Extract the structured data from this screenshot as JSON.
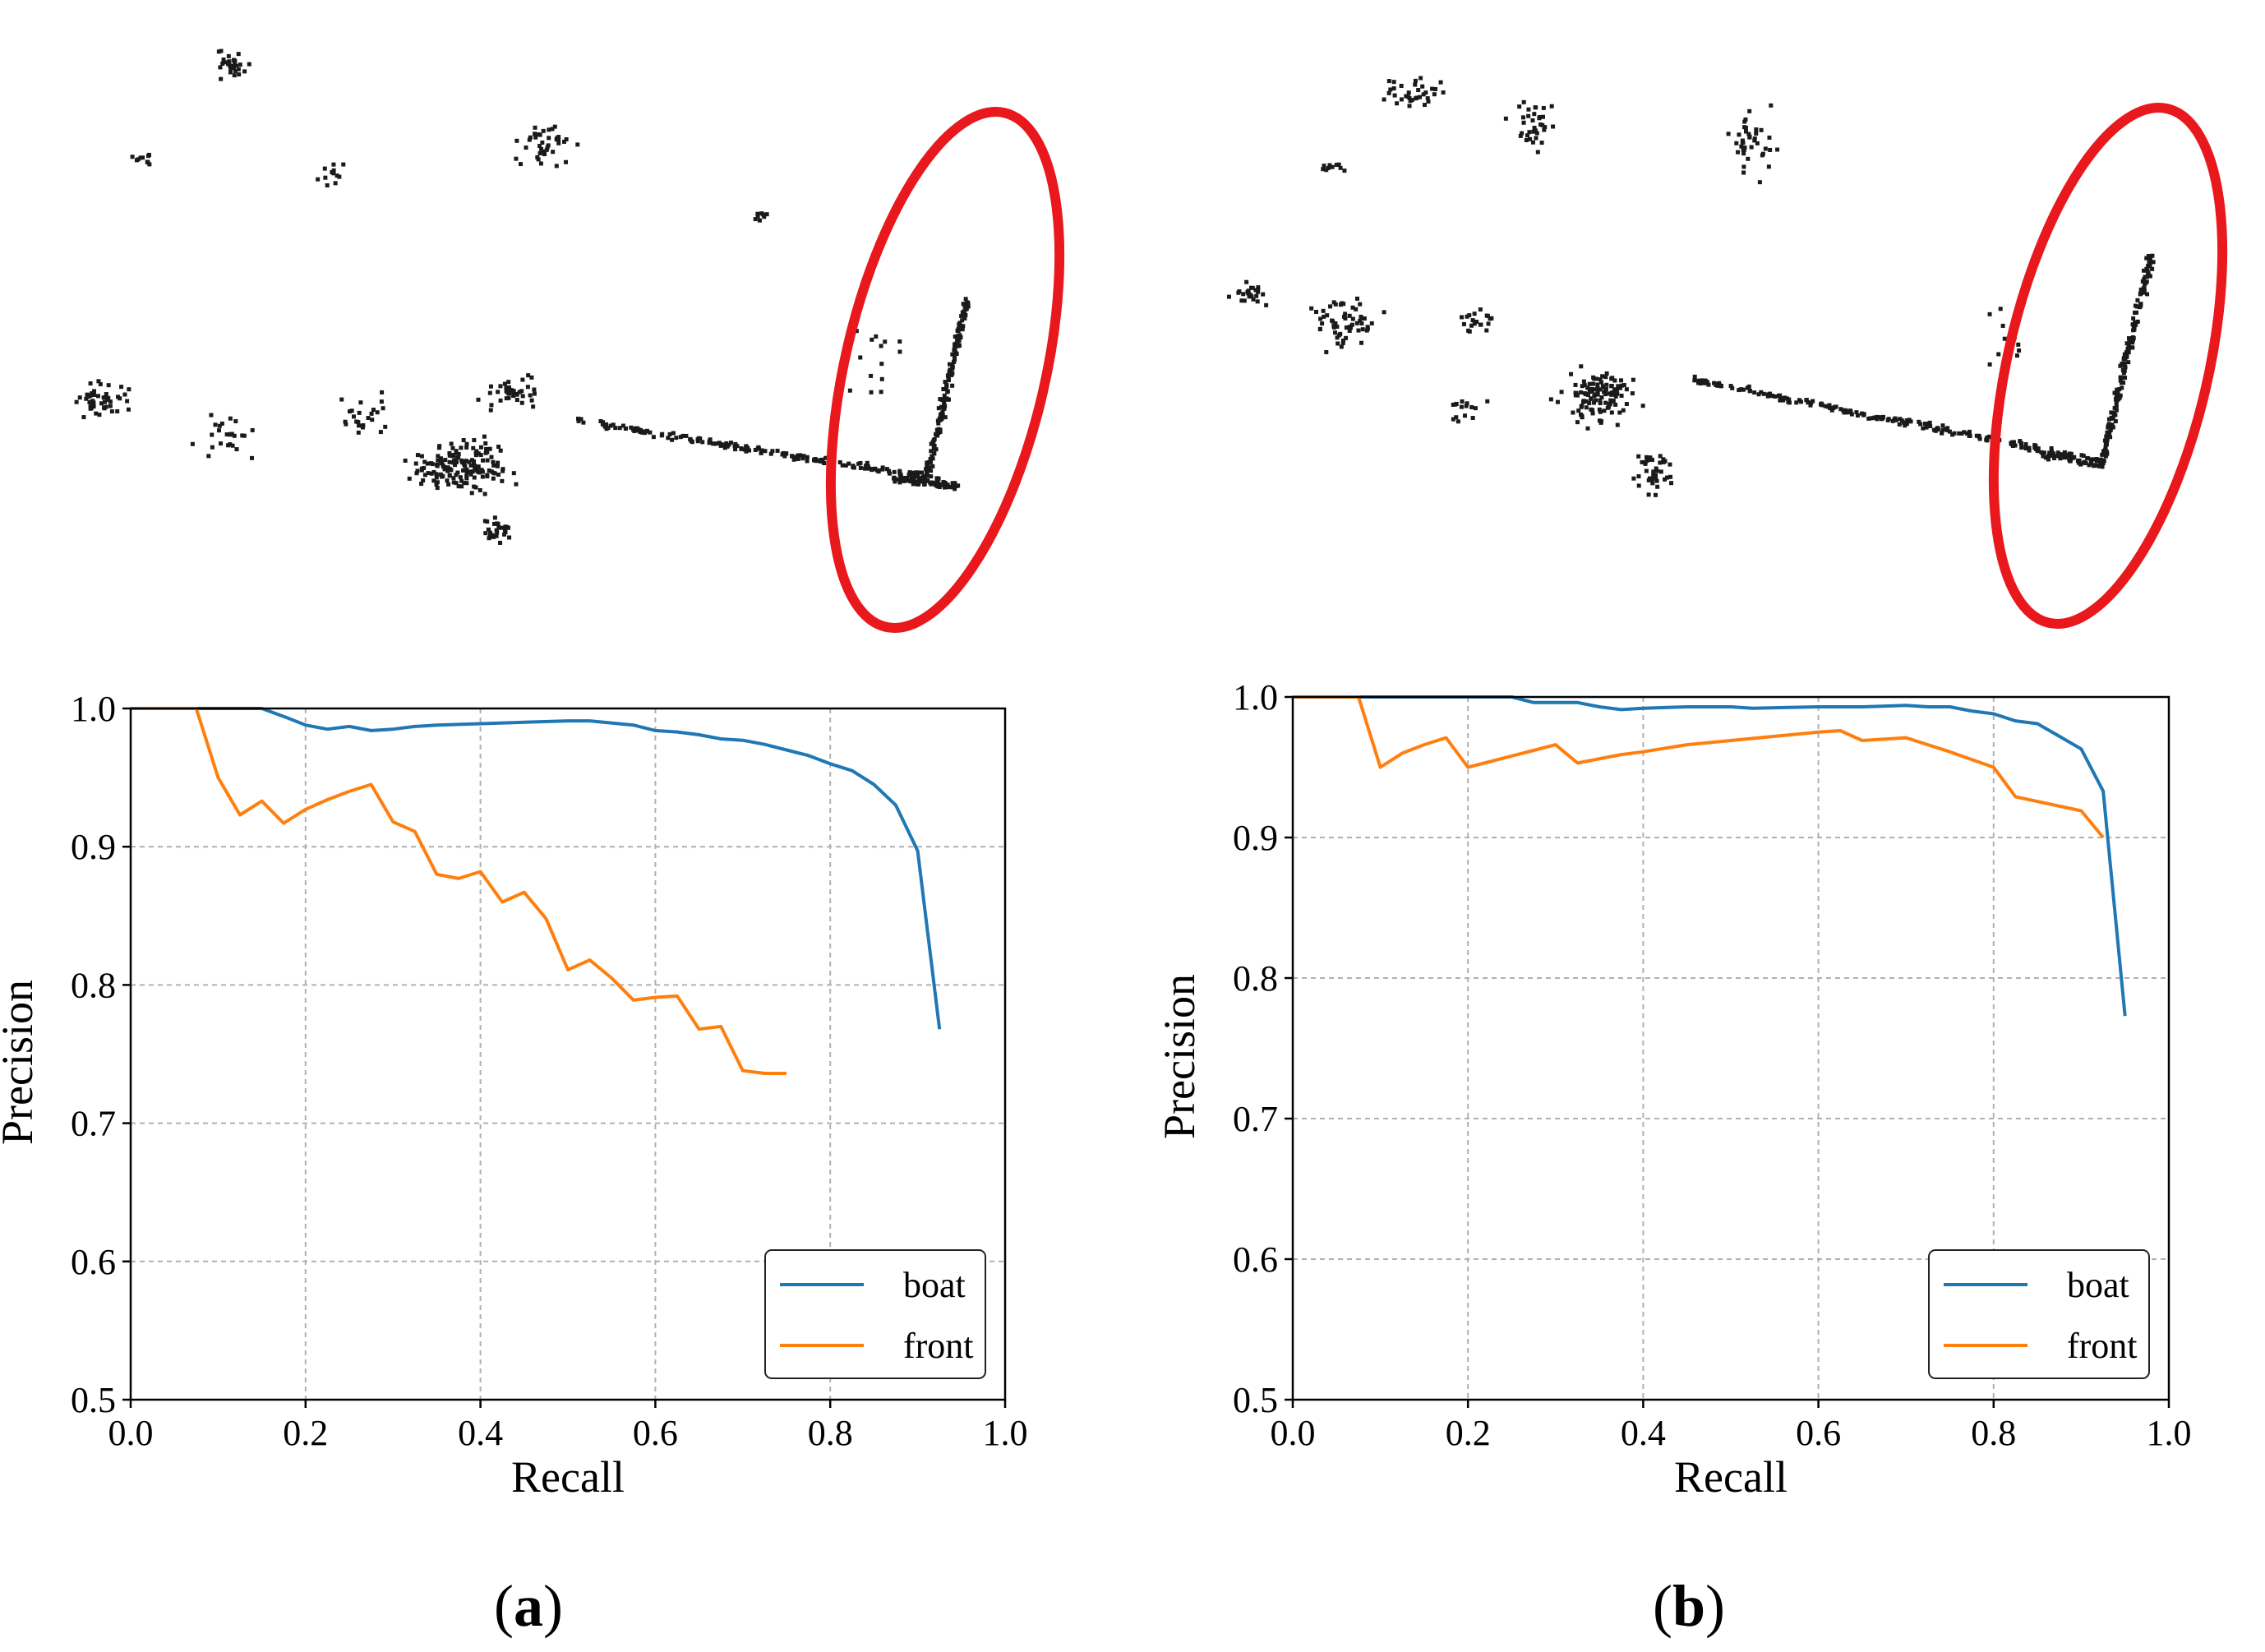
{
  "figure": {
    "panels": [
      {
        "label_prefix": "(",
        "label_letter": "a",
        "label_suffix": ")"
      },
      {
        "label_prefix": "(",
        "label_letter": "b",
        "label_suffix": ")"
      }
    ],
    "highlight_color": "#e8181c",
    "point_color": "#1a1a1a"
  },
  "chart_data": [
    {
      "type": "line",
      "xlabel": "Recall",
      "ylabel": "Precision",
      "xlim": [
        0.0,
        1.0
      ],
      "ylim": [
        0.5,
        1.0
      ],
      "xticks": [
        "0.0",
        "0.2",
        "0.4",
        "0.6",
        "0.8",
        "1.0"
      ],
      "yticks": [
        "0.5",
        "0.6",
        "0.7",
        "0.8",
        "0.9",
        "1.0"
      ],
      "grid": true,
      "legend_position": "lower-right",
      "series": [
        {
          "name": "boat",
          "color": "#1f77b4",
          "x": [
            0.0,
            0.15,
            0.18,
            0.2,
            0.225,
            0.25,
            0.275,
            0.3,
            0.325,
            0.35,
            0.4,
            0.45,
            0.5,
            0.525,
            0.575,
            0.6,
            0.625,
            0.65,
            0.675,
            0.7,
            0.725,
            0.75,
            0.775,
            0.8,
            0.825,
            0.85,
            0.875,
            0.9,
            0.925
          ],
          "y": [
            1.0,
            1.0,
            0.993,
            0.988,
            0.985,
            0.987,
            0.984,
            0.985,
            0.987,
            0.988,
            0.989,
            0.99,
            0.991,
            0.991,
            0.988,
            0.984,
            0.983,
            0.981,
            0.978,
            0.977,
            0.974,
            0.97,
            0.966,
            0.96,
            0.955,
            0.945,
            0.93,
            0.897,
            0.768
          ]
        },
        {
          "name": "front",
          "color": "#ff7f0e",
          "x": [
            0.0,
            0.075,
            0.1,
            0.125,
            0.15,
            0.175,
            0.2,
            0.225,
            0.25,
            0.275,
            0.3,
            0.325,
            0.35,
            0.375,
            0.4,
            0.425,
            0.45,
            0.475,
            0.5,
            0.525,
            0.55,
            0.575,
            0.6,
            0.625,
            0.65,
            0.675,
            0.7,
            0.725,
            0.75
          ],
          "y": [
            1.0,
            1.0,
            0.95,
            0.923,
            0.933,
            0.917,
            0.927,
            0.934,
            0.94,
            0.945,
            0.918,
            0.911,
            0.88,
            0.877,
            0.882,
            0.86,
            0.867,
            0.848,
            0.811,
            0.818,
            0.805,
            0.789,
            0.791,
            0.792,
            0.768,
            0.77,
            0.738,
            0.736,
            0.736
          ]
        }
      ]
    },
    {
      "type": "line",
      "xlabel": "Recall",
      "ylabel": "Precision",
      "xlim": [
        0.0,
        1.0
      ],
      "ylim": [
        0.5,
        1.0
      ],
      "xticks": [
        "0.0",
        "0.2",
        "0.4",
        "0.6",
        "0.8",
        "1.0"
      ],
      "yticks": [
        "0.5",
        "0.6",
        "0.7",
        "0.8",
        "0.9",
        "1.0"
      ],
      "grid": true,
      "legend_position": "lower-right",
      "series": [
        {
          "name": "boat",
          "color": "#1f77b4",
          "x": [
            0.0,
            0.25,
            0.275,
            0.3,
            0.325,
            0.35,
            0.375,
            0.4,
            0.45,
            0.5,
            0.525,
            0.6,
            0.65,
            0.7,
            0.725,
            0.75,
            0.775,
            0.8,
            0.825,
            0.85,
            0.875,
            0.9,
            0.925,
            0.95
          ],
          "y": [
            1.0,
            1.0,
            0.996,
            0.996,
            0.996,
            0.993,
            0.991,
            0.992,
            0.993,
            0.993,
            0.992,
            0.993,
            0.993,
            0.994,
            0.993,
            0.993,
            0.99,
            0.988,
            0.983,
            0.981,
            0.972,
            0.963,
            0.933,
            0.773
          ]
        },
        {
          "name": "front",
          "color": "#ff7f0e",
          "x": [
            0.0,
            0.075,
            0.1,
            0.125,
            0.15,
            0.175,
            0.2,
            0.225,
            0.25,
            0.275,
            0.3,
            0.325,
            0.35,
            0.375,
            0.4,
            0.45,
            0.5,
            0.55,
            0.6,
            0.625,
            0.65,
            0.7,
            0.75,
            0.8,
            0.825,
            0.9,
            0.925
          ],
          "y": [
            1.0,
            1.0,
            0.95,
            0.96,
            0.966,
            0.971,
            0.95,
            0.954,
            0.958,
            0.962,
            0.966,
            0.953,
            0.956,
            0.959,
            0.961,
            0.966,
            0.969,
            0.972,
            0.975,
            0.976,
            0.969,
            0.971,
            0.961,
            0.95,
            0.929,
            0.919,
            0.9
          ]
        }
      ]
    }
  ]
}
